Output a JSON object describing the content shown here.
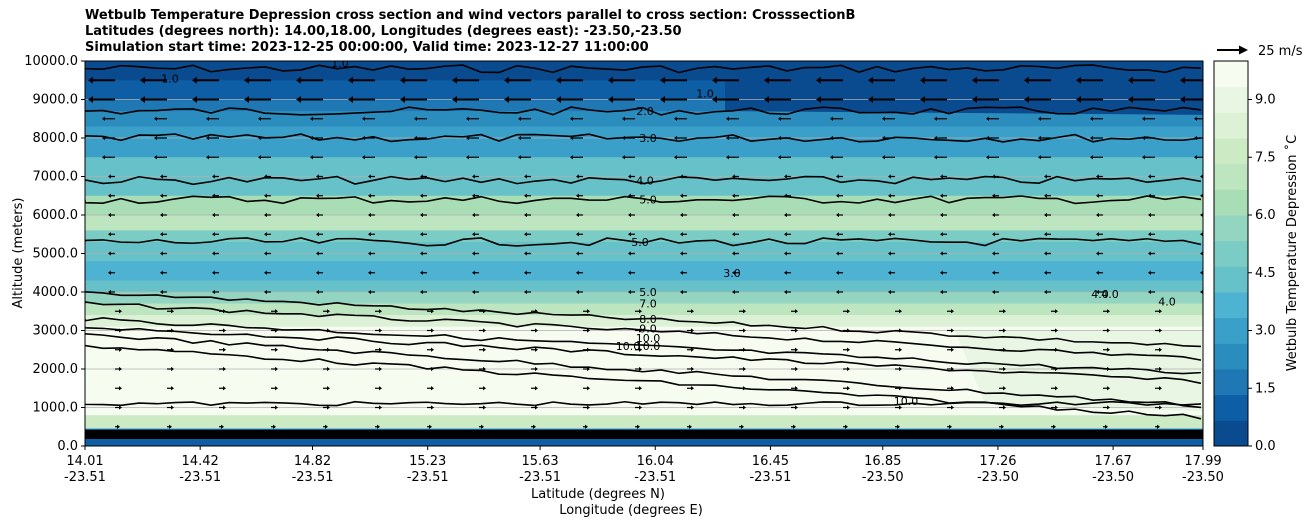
{
  "chart_data": {
    "type": "heatmap",
    "title_lines": [
      "Wetbulb Temperature Depression cross section and wind vectors parallel to cross section: CrosssectionB",
      "Latitudes (degrees north): 14.00,18.00, Longitudes (degrees east): -23.50,-23.50",
      "Simulation start time: 2023-12-25 00:00:00, Valid time: 2023-12-27 11:00:00"
    ],
    "xlabel_lat": "Latitude (degrees N)",
    "xlabel_lon": "Longitude (degrees E)",
    "ylabel": "Altitude (meters)",
    "ylim": [
      0,
      10000
    ],
    "y_ticks": [
      "0.0",
      "1000.0",
      "2000.0",
      "3000.0",
      "4000.0",
      "5000.0",
      "6000.0",
      "7000.0",
      "8000.0",
      "9000.0",
      "10000.0"
    ],
    "x_ticks": [
      {
        "lat": "14.01",
        "lon": "-23.51"
      },
      {
        "lat": "14.42",
        "lon": "-23.51"
      },
      {
        "lat": "14.82",
        "lon": "-23.51"
      },
      {
        "lat": "15.23",
        "lon": "-23.51"
      },
      {
        "lat": "15.63",
        "lon": "-23.51"
      },
      {
        "lat": "16.04",
        "lon": "-23.51"
      },
      {
        "lat": "16.45",
        "lon": "-23.51"
      },
      {
        "lat": "16.85",
        "lon": "-23.50"
      },
      {
        "lat": "17.26",
        "lon": "-23.50"
      },
      {
        "lat": "17.67",
        "lon": "-23.50"
      },
      {
        "lat": "17.99",
        "lon": "-23.50"
      }
    ],
    "colorbar": {
      "label": "Wetbulb Temperature Depression ˚C",
      "ticks": [
        "0.0",
        "1.5",
        "3.0",
        "4.5",
        "6.0",
        "7.5",
        "9.0"
      ],
      "range": [
        0,
        10
      ],
      "colors": [
        "#0a4a8e",
        "#0e5ea5",
        "#1f77b4",
        "#2b8cbe",
        "#3a9fc9",
        "#4eb3d3",
        "#66c2c8",
        "#7bccc4",
        "#94d5c2",
        "#a8ddb5",
        "#bde5bf",
        "#ccebc5",
        "#dcf1d6",
        "#e9f6e3",
        "#f7fcf0"
      ]
    },
    "quiver_key": "25 m/s",
    "wind": "mostly westward (arrows pointing left) aloft, weak eastward near 1000-3000 m",
    "contours": [
      {
        "level": "1.0",
        "altitude_m": 9800
      },
      {
        "level": "2.0",
        "altitude_m": 8700
      },
      {
        "level": "3.0",
        "altitude_m": 8000
      },
      {
        "level": "4.0",
        "altitude_m": 6900
      },
      {
        "level": "5.0",
        "altitude_m": 6400
      },
      {
        "level": "5.0",
        "altitude_m": 5300
      },
      {
        "level": "4.0",
        "altitude_m": 4000
      },
      {
        "level": "5.0",
        "altitude_m": 3700
      },
      {
        "level": "7.0",
        "altitude_m": 3300
      },
      {
        "level": "8.0",
        "altitude_m": 3100
      },
      {
        "level": "9.0",
        "altitude_m": 2900
      },
      {
        "level": "10.0",
        "altitude_m": 2600
      },
      {
        "level": "10.0",
        "altitude_m": 1100
      }
    ],
    "contour_labels": [
      "1.0",
      "1.0",
      "1.0",
      "2.0",
      "3.0",
      "4.0",
      "5.0",
      "5.0",
      "4.0",
      "5.0",
      "7.0",
      "8.0",
      "9.0",
      "10.0",
      "10.0",
      "10.0",
      "3.0",
      "4.0",
      "4.0",
      "10.0"
    ]
  }
}
